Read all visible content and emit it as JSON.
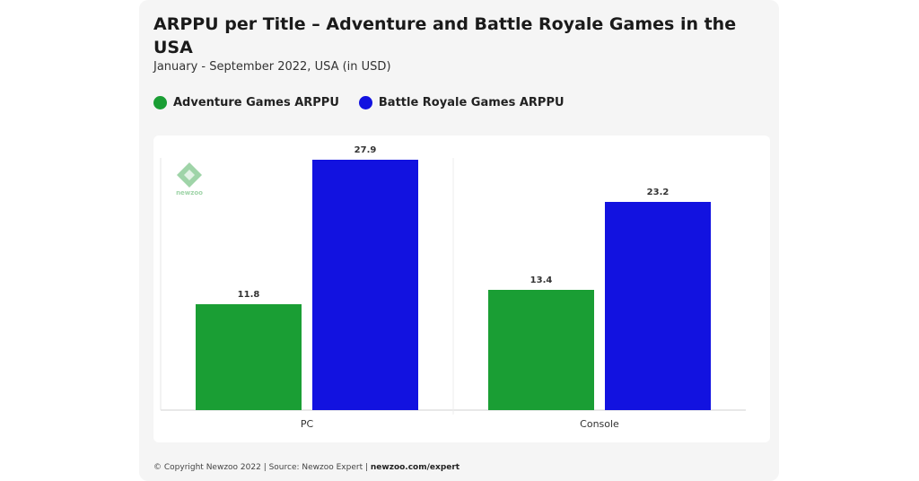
{
  "title": "ARPPU per Title – Adventure and Battle Royale Games in the USA",
  "subtitle": "January - September 2022, USA (in USD)",
  "legend": [
    {
      "label": "Adventure Games ARPPU",
      "color": "#1a9e34"
    },
    {
      "label": "Battle Royale Games ARPPU",
      "color": "#1212e0"
    }
  ],
  "logo_text": "newzoo",
  "footer": {
    "text": "© Copyright Newzoo 2022 | Source: Newzoo Expert | ",
    "link": "newzoo.com/expert"
  },
  "chart_data": {
    "type": "bar",
    "title": "ARPPU per Title – Adventure and Battle Royale Games in the USA",
    "subtitle": "January - September 2022, USA (in USD)",
    "categories": [
      "PC",
      "Console"
    ],
    "series": [
      {
        "name": "Adventure Games ARPPU",
        "color": "#1a9e34",
        "values": [
          11.8,
          13.4
        ]
      },
      {
        "name": "Battle Royale Games ARPPU",
        "color": "#1212e0",
        "values": [
          27.9,
          23.2
        ]
      }
    ],
    "ylim": [
      0,
      27.9
    ],
    "grid": false,
    "legend_position": "top-left",
    "data_labels": true
  }
}
